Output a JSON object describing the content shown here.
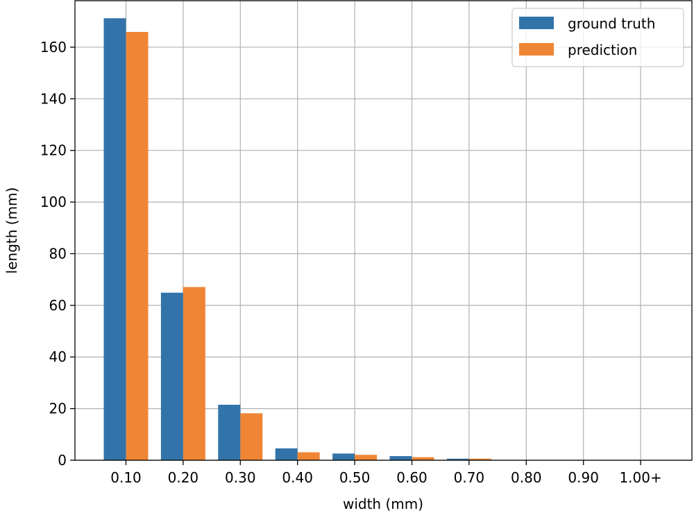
{
  "chart_data": {
    "type": "bar",
    "title": "",
    "xlabel": "width (mm)",
    "ylabel": "length (mm)",
    "categories": [
      "0.10",
      "0.20",
      "0.30",
      "0.40",
      "0.50",
      "0.60",
      "0.70",
      "0.80",
      "0.90",
      "1.00+"
    ],
    "series": [
      {
        "name": "ground truth",
        "color": "#3274a9",
        "values": [
          171.2,
          64.9,
          21.5,
          4.6,
          2.6,
          1.6,
          0.6,
          0.1,
          0.05,
          0.05
        ]
      },
      {
        "name": "prediction",
        "color": "#ef8636",
        "values": [
          165.9,
          67.1,
          18.2,
          3.1,
          2.1,
          1.2,
          0.6,
          0.1,
          0.05,
          0.05
        ]
      }
    ],
    "ylim": [
      0,
      178
    ],
    "yticks": [
      0,
      20,
      40,
      60,
      80,
      100,
      120,
      140,
      160
    ],
    "grid": true,
    "legend_position": "top-right"
  }
}
